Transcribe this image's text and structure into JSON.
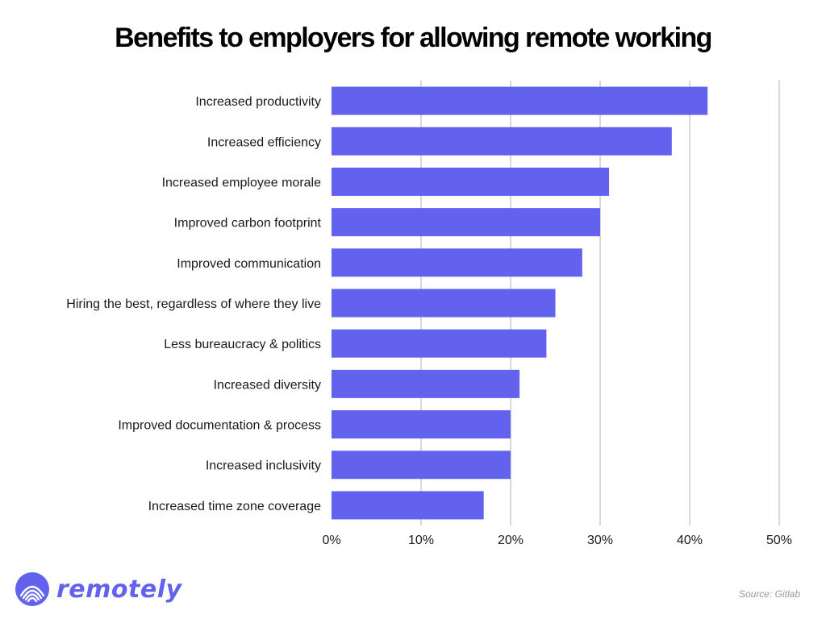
{
  "source_note": "Source: Gitlab",
  "brand": {
    "name": "remotely",
    "color": "#6262ee",
    "icon": "remotely-logo-icon"
  },
  "chart_data": {
    "type": "bar",
    "orientation": "horizontal",
    "title": "Benefits to employers for allowing remote working",
    "xlabel": "",
    "ylabel": "",
    "categories": [
      "Increased productivity",
      "Increased efficiency",
      "Increased employee morale",
      "Improved carbon footprint",
      "Improved communication",
      "Hiring the best, regardless of where they live",
      "Less bureaucracy & politics",
      "Increased diversity",
      "Improved documentation & process",
      "Increased inclusivity",
      "Increased time zone coverage"
    ],
    "values": [
      42,
      38,
      31,
      30,
      28,
      25,
      24,
      21,
      20,
      20,
      17
    ],
    "unit": "%",
    "xlim": [
      0,
      50
    ],
    "ticks": [
      0,
      10,
      20,
      30,
      40,
      50
    ],
    "tick_labels": [
      "0%",
      "10%",
      "20%",
      "30%",
      "40%",
      "50%"
    ],
    "bar_color": "#6262ee",
    "grid": true,
    "grid_color": "#cccccc"
  }
}
